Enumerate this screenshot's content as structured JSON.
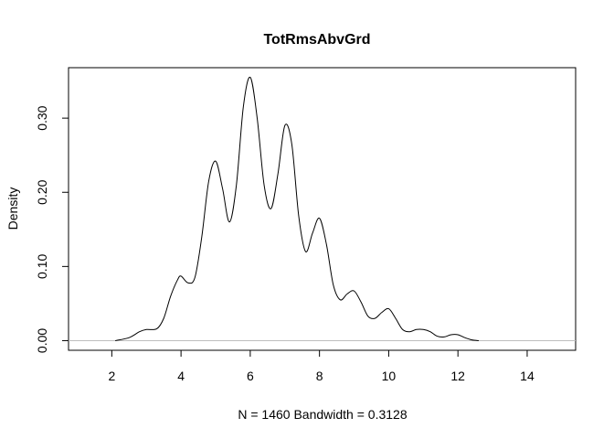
{
  "chart_data": {
    "type": "line",
    "title": "TotRmsAbvGrd",
    "xlabel": "N = 1460   Bandwidth = 0.3128",
    "ylabel": "Density",
    "xlim": [
      0.75,
      15.4
    ],
    "ylim": [
      -0.013,
      0.368
    ],
    "xticks": [
      2,
      4,
      6,
      8,
      10,
      12,
      14
    ],
    "yticks": [
      0.0,
      0.1,
      0.2,
      0.3
    ],
    "ytick_labels": [
      "0.00",
      "0.10",
      "0.20",
      "0.30"
    ],
    "baseline": 0,
    "grid": false,
    "series": [
      {
        "color": "#000000",
        "x": [
          2.1,
          2.5,
          2.8,
          3.0,
          3.3,
          3.5,
          3.7,
          3.9,
          4.0,
          4.2,
          4.4,
          4.6,
          4.8,
          5.0,
          5.2,
          5.4,
          5.6,
          5.8,
          6.0,
          6.2,
          6.4,
          6.6,
          6.8,
          7.0,
          7.2,
          7.4,
          7.6,
          7.8,
          8.0,
          8.2,
          8.4,
          8.6,
          8.8,
          9.0,
          9.2,
          9.4,
          9.6,
          9.8,
          10.0,
          10.2,
          10.4,
          10.6,
          10.8,
          11.0,
          11.2,
          11.4,
          11.6,
          11.8,
          12.0,
          12.2,
          12.4,
          12.6
        ],
        "y": [
          0.0,
          0.004,
          0.012,
          0.015,
          0.016,
          0.03,
          0.06,
          0.082,
          0.087,
          0.078,
          0.085,
          0.14,
          0.215,
          0.242,
          0.205,
          0.16,
          0.21,
          0.315,
          0.355,
          0.3,
          0.21,
          0.178,
          0.225,
          0.29,
          0.265,
          0.168,
          0.12,
          0.145,
          0.165,
          0.13,
          0.075,
          0.055,
          0.063,
          0.067,
          0.052,
          0.033,
          0.03,
          0.038,
          0.043,
          0.03,
          0.015,
          0.012,
          0.015,
          0.015,
          0.012,
          0.006,
          0.005,
          0.008,
          0.008,
          0.004,
          0.001,
          0.0
        ]
      }
    ]
  }
}
